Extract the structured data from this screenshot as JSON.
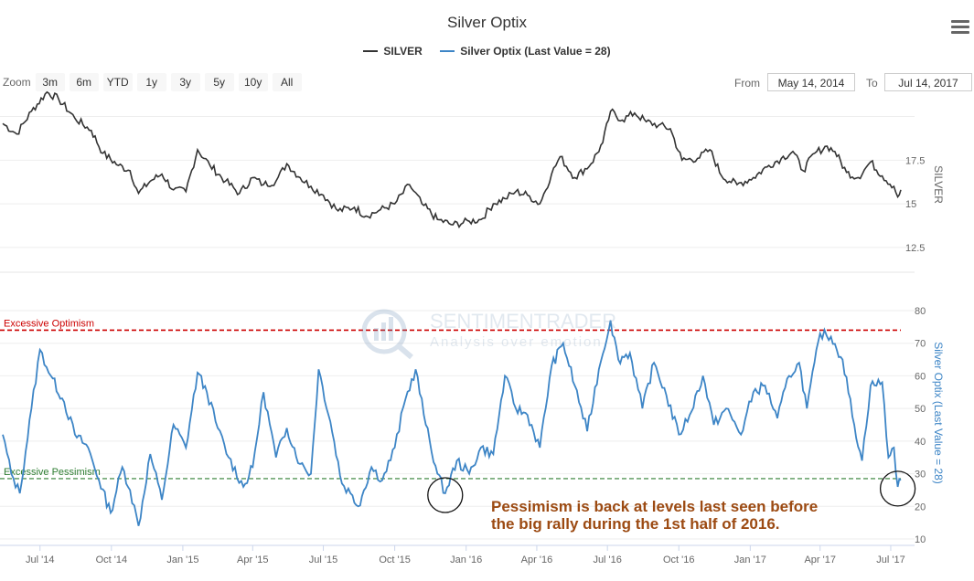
{
  "chart_data": {
    "type": "line",
    "title": "Silver Optix",
    "legend": {
      "placement": "top-center",
      "items": [
        {
          "name": "SILVER",
          "color": "#333333"
        },
        {
          "name": "Silver Optix (Last Value = 28)",
          "color": "#3d85c6"
        }
      ]
    },
    "zoom": {
      "label": "Zoom",
      "buttons": [
        "3m",
        "6m",
        "YTD",
        "1y",
        "3y",
        "5y",
        "10y",
        "All"
      ]
    },
    "range": {
      "from_label": "From",
      "from": "May 14, 2014",
      "to_label": "To",
      "to": "Jul 14, 2017"
    },
    "x_ticks": [
      "Jul '14",
      "Oct '14",
      "Jan '15",
      "Apr '15",
      "Jul '15",
      "Oct '15",
      "Jan '16",
      "Apr '16",
      "Jul '16",
      "Oct '16",
      "Jan '17",
      "Apr '17",
      "Jul '17"
    ],
    "x_range": [
      "2014-05-14",
      "2017-07-14"
    ],
    "silver_panel": {
      "axis_title": "SILVER",
      "y_ticks": [
        "17.5",
        "15",
        "12.5"
      ],
      "ylim": [
        11.5,
        20.5
      ],
      "series": {
        "name": "SILVER",
        "color": "#333333",
        "points": [
          [
            "2014-05-14",
            19.6
          ],
          [
            "2014-06-01",
            19.0
          ],
          [
            "2014-06-20",
            20.3
          ],
          [
            "2014-07-10",
            21.4
          ],
          [
            "2014-07-25",
            21.0
          ],
          [
            "2014-08-15",
            19.9
          ],
          [
            "2014-09-05",
            19.2
          ],
          [
            "2014-09-20",
            17.9
          ],
          [
            "2014-10-10",
            17.2
          ],
          [
            "2014-10-25",
            16.9
          ],
          [
            "2014-11-05",
            15.6
          ],
          [
            "2014-11-20",
            16.3
          ],
          [
            "2014-12-05",
            16.7
          ],
          [
            "2014-12-20",
            15.8
          ],
          [
            "2015-01-05",
            15.7
          ],
          [
            "2015-01-20",
            18.1
          ],
          [
            "2015-02-05",
            17.2
          ],
          [
            "2015-02-25",
            16.3
          ],
          [
            "2015-03-15",
            15.6
          ],
          [
            "2015-04-01",
            16.5
          ],
          [
            "2015-04-15",
            16.1
          ],
          [
            "2015-05-01",
            16.3
          ],
          [
            "2015-05-15",
            17.3
          ],
          [
            "2015-06-01",
            16.5
          ],
          [
            "2015-06-15",
            16.0
          ],
          [
            "2015-07-01",
            15.5
          ],
          [
            "2015-07-20",
            14.6
          ],
          [
            "2015-08-10",
            14.8
          ],
          [
            "2015-08-25",
            14.3
          ],
          [
            "2015-09-10",
            14.6
          ],
          [
            "2015-10-01",
            15.0
          ],
          [
            "2015-10-20",
            16.1
          ],
          [
            "2015-11-05",
            15.0
          ],
          [
            "2015-11-25",
            14.1
          ],
          [
            "2015-12-15",
            13.8
          ],
          [
            "2016-01-05",
            14.0
          ],
          [
            "2016-01-20",
            14.1
          ],
          [
            "2016-02-05",
            15.0
          ],
          [
            "2016-02-20",
            15.3
          ],
          [
            "2016-03-05",
            15.7
          ],
          [
            "2016-03-20",
            15.5
          ],
          [
            "2016-04-05",
            15.0
          ],
          [
            "2016-04-20",
            16.7
          ],
          [
            "2016-05-01",
            17.7
          ],
          [
            "2016-05-20",
            16.5
          ],
          [
            "2016-06-10",
            17.3
          ],
          [
            "2016-06-25",
            18.5
          ],
          [
            "2016-07-05",
            20.3
          ],
          [
            "2016-07-20",
            19.8
          ],
          [
            "2016-08-05",
            20.2
          ],
          [
            "2016-08-20",
            19.7
          ],
          [
            "2016-09-05",
            19.5
          ],
          [
            "2016-09-20",
            19.3
          ],
          [
            "2016-10-05",
            17.5
          ],
          [
            "2016-10-25",
            17.6
          ],
          [
            "2016-11-10",
            18.1
          ],
          [
            "2016-11-25",
            16.6
          ],
          [
            "2016-12-15",
            16.1
          ],
          [
            "2017-01-05",
            16.5
          ],
          [
            "2017-01-25",
            17.2
          ],
          [
            "2017-02-10",
            17.6
          ],
          [
            "2017-02-25",
            18.0
          ],
          [
            "2017-03-10",
            16.9
          ],
          [
            "2017-03-25",
            17.9
          ],
          [
            "2017-04-10",
            18.3
          ],
          [
            "2017-04-20",
            18.0
          ],
          [
            "2017-05-05",
            16.8
          ],
          [
            "2017-05-20",
            16.5
          ],
          [
            "2017-06-05",
            17.4
          ],
          [
            "2017-06-20",
            16.6
          ],
          [
            "2017-07-05",
            16.0
          ],
          [
            "2017-07-10",
            15.4
          ],
          [
            "2017-07-14",
            15.8
          ]
        ]
      }
    },
    "optix_panel": {
      "axis_title": "Silver Optix (Last Value = 28)",
      "y_ticks": [
        "80",
        "70",
        "60",
        "50",
        "40",
        "30",
        "20",
        "10"
      ],
      "ylim": [
        10,
        80
      ],
      "series": {
        "name": "Silver Optix (Last Value = 28)",
        "color": "#3d85c6",
        "points": [
          [
            "2014-05-14",
            42
          ],
          [
            "2014-05-25",
            30
          ],
          [
            "2014-06-05",
            24
          ],
          [
            "2014-06-20",
            50
          ],
          [
            "2014-07-01",
            68
          ],
          [
            "2014-07-15",
            60
          ],
          [
            "2014-08-01",
            52
          ],
          [
            "2014-08-15",
            42
          ],
          [
            "2014-09-01",
            38
          ],
          [
            "2014-09-15",
            28
          ],
          [
            "2014-09-30",
            18
          ],
          [
            "2014-10-15",
            32
          ],
          [
            "2014-10-25",
            25
          ],
          [
            "2014-11-05",
            14
          ],
          [
            "2014-11-20",
            36
          ],
          [
            "2014-12-05",
            22
          ],
          [
            "2014-12-20",
            45
          ],
          [
            "2015-01-05",
            38
          ],
          [
            "2015-01-20",
            61
          ],
          [
            "2015-02-01",
            55
          ],
          [
            "2015-02-15",
            44
          ],
          [
            "2015-03-01",
            35
          ],
          [
            "2015-03-20",
            26
          ],
          [
            "2015-04-01",
            32
          ],
          [
            "2015-04-15",
            55
          ],
          [
            "2015-05-01",
            35
          ],
          [
            "2015-05-15",
            44
          ],
          [
            "2015-06-01",
            33
          ],
          [
            "2015-06-15",
            30
          ],
          [
            "2015-06-25",
            62
          ],
          [
            "2015-07-10",
            46
          ],
          [
            "2015-07-25",
            27
          ],
          [
            "2015-08-05",
            24
          ],
          [
            "2015-08-15",
            20
          ],
          [
            "2015-09-01",
            32
          ],
          [
            "2015-09-15",
            28
          ],
          [
            "2015-10-01",
            38
          ],
          [
            "2015-10-15",
            53
          ],
          [
            "2015-10-28",
            62
          ],
          [
            "2015-11-10",
            45
          ],
          [
            "2015-11-25",
            30
          ],
          [
            "2015-12-05",
            24
          ],
          [
            "2015-12-20",
            34
          ],
          [
            "2016-01-05",
            30
          ],
          [
            "2016-01-20",
            38
          ],
          [
            "2016-02-05",
            36
          ],
          [
            "2016-02-20",
            60
          ],
          [
            "2016-03-05",
            50
          ],
          [
            "2016-03-20",
            48
          ],
          [
            "2016-04-05",
            38
          ],
          [
            "2016-04-20",
            63
          ],
          [
            "2016-05-05",
            70
          ],
          [
            "2016-05-20",
            57
          ],
          [
            "2016-06-05",
            43
          ],
          [
            "2016-06-20",
            62
          ],
          [
            "2016-07-05",
            77
          ],
          [
            "2016-07-15",
            65
          ],
          [
            "2016-07-30",
            67
          ],
          [
            "2016-08-15",
            50
          ],
          [
            "2016-08-30",
            64
          ],
          [
            "2016-09-15",
            54
          ],
          [
            "2016-10-01",
            42
          ],
          [
            "2016-10-15",
            48
          ],
          [
            "2016-11-01",
            60
          ],
          [
            "2016-11-15",
            45
          ],
          [
            "2016-12-01",
            50
          ],
          [
            "2016-12-20",
            42
          ],
          [
            "2017-01-05",
            55
          ],
          [
            "2017-01-20",
            57
          ],
          [
            "2017-02-05",
            47
          ],
          [
            "2017-02-20",
            60
          ],
          [
            "2017-03-05",
            64
          ],
          [
            "2017-03-15",
            50
          ],
          [
            "2017-04-01",
            73
          ],
          [
            "2017-04-15",
            72
          ],
          [
            "2017-04-30",
            65
          ],
          [
            "2017-05-15",
            45
          ],
          [
            "2017-05-25",
            34
          ],
          [
            "2017-06-05",
            57
          ],
          [
            "2017-06-20",
            58
          ],
          [
            "2017-06-28",
            35
          ],
          [
            "2017-07-05",
            38
          ],
          [
            "2017-07-10",
            26
          ],
          [
            "2017-07-14",
            28
          ]
        ]
      },
      "thresholds": [
        {
          "label": "Excessive Optimism",
          "value": 74,
          "color": "#cc0000"
        },
        {
          "label": "Excessive Pessimism",
          "value": 28.5,
          "color": "#2e7d32"
        }
      ],
      "circled_points": [
        [
          "2015-12-05",
          24
        ],
        [
          "2017-07-10",
          26
        ]
      ]
    },
    "annotation": [
      "Pessimism is back at levels last seen before",
      "the big rally during the 1st half of 2016."
    ],
    "watermark": {
      "brand": "SENTIMENTRADER",
      "tagline": "Analysis over emotion"
    }
  }
}
